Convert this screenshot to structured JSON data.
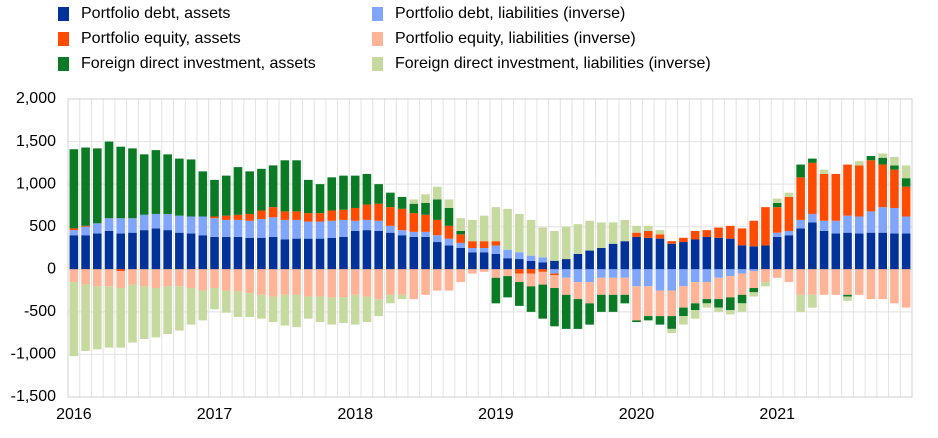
{
  "chart_data": {
    "type": "stacked_bar",
    "categories": [
      "2016",
      null,
      null,
      null,
      null,
      null,
      null,
      null,
      null,
      null,
      null,
      null,
      "2017",
      null,
      null,
      null,
      null,
      null,
      null,
      null,
      null,
      null,
      null,
      null,
      "2018",
      null,
      null,
      null,
      null,
      null,
      null,
      null,
      null,
      null,
      null,
      null,
      "2019",
      null,
      null,
      null,
      null,
      null,
      null,
      null,
      null,
      null,
      null,
      null,
      "2020",
      null,
      null,
      null,
      null,
      null,
      null,
      null,
      null,
      null,
      null,
      null,
      "2021",
      null,
      null,
      null,
      null,
      null,
      null,
      null,
      null,
      null,
      null,
      null
    ],
    "series": [
      {
        "name": "Portfolio debt, assets",
        "color": "#003299",
        "values": [
          400,
          400,
          420,
          450,
          420,
          430,
          460,
          480,
          460,
          430,
          420,
          400,
          380,
          380,
          380,
          370,
          370,
          380,
          350,
          360,
          360,
          360,
          370,
          380,
          450,
          460,
          450,
          430,
          400,
          380,
          380,
          320,
          280,
          250,
          200,
          200,
          180,
          130,
          120,
          100,
          80,
          100,
          120,
          180,
          220,
          250,
          300,
          330,
          380,
          370,
          360,
          300,
          320,
          350,
          380,
          370,
          360,
          280,
          270,
          280,
          380,
          400,
          480,
          550,
          450,
          420,
          430,
          420,
          430,
          430,
          420,
          420
        ]
      },
      {
        "name": "Portfolio debt, liabilities (inverse)",
        "color": "#7fa6fb",
        "values": [
          60,
          100,
          120,
          150,
          180,
          170,
          180,
          170,
          190,
          200,
          200,
          220,
          220,
          200,
          200,
          200,
          220,
          230,
          230,
          220,
          200,
          200,
          200,
          200,
          120,
          120,
          120,
          80,
          60,
          60,
          60,
          80,
          80,
          60,
          50,
          50,
          100,
          100,
          80,
          60,
          60,
          -50,
          -100,
          -150,
          -150,
          -100,
          -100,
          -100,
          -200,
          -200,
          -250,
          -250,
          -200,
          -150,
          -150,
          -100,
          -80,
          -50,
          -20,
          0,
          50,
          50,
          100,
          100,
          120,
          150,
          200,
          200,
          250,
          300,
          300,
          200
        ]
      },
      {
        "name": "Portfolio equity, assets",
        "color": "#ff4b00",
        "values": [
          20,
          10,
          0,
          0,
          -20,
          0,
          0,
          0,
          0,
          0,
          0,
          0,
          20,
          50,
          60,
          80,
          100,
          120,
          100,
          100,
          100,
          100,
          120,
          120,
          150,
          180,
          200,
          220,
          250,
          220,
          200,
          180,
          150,
          100,
          80,
          80,
          50,
          0,
          -50,
          -50,
          -30,
          -20,
          0,
          0,
          0,
          0,
          0,
          0,
          50,
          80,
          50,
          30,
          50,
          100,
          80,
          120,
          150,
          200,
          300,
          450,
          300,
          400,
          500,
          600,
          550,
          550,
          600,
          600,
          600,
          500,
          450,
          350
        ]
      },
      {
        "name": "Portfolio equity, liabilities (inverse)",
        "color": "#ffb497",
        "values": [
          -150,
          -180,
          -200,
          -200,
          -200,
          -180,
          -200,
          -220,
          -200,
          -200,
          -220,
          -250,
          -220,
          -250,
          -260,
          -280,
          -300,
          -320,
          -300,
          -300,
          -320,
          -320,
          -330,
          -330,
          -300,
          -320,
          -350,
          -300,
          -300,
          -350,
          -300,
          -250,
          -250,
          -150,
          -50,
          -30,
          -100,
          -80,
          -100,
          -150,
          -150,
          -150,
          -200,
          -200,
          -250,
          -200,
          -200,
          -200,
          -400,
          -350,
          -300,
          -300,
          -250,
          -250,
          -200,
          -250,
          -250,
          -250,
          -200,
          -150,
          -100,
          -150,
          -300,
          -300,
          -300,
          -300,
          -300,
          -300,
          -350,
          -350,
          -400,
          -450
        ]
      },
      {
        "name": "Foreign direct investment, assets",
        "color": "#0b7a25",
        "values": [
          930,
          920,
          880,
          900,
          840,
          820,
          710,
          750,
          700,
          670,
          670,
          530,
          430,
          470,
          560,
          500,
          490,
          490,
          600,
          600,
          390,
          340,
          390,
          400,
          380,
          360,
          230,
          170,
          140,
          110,
          140,
          240,
          210,
          40,
          0,
          0,
          -300,
          -250,
          -280,
          -300,
          -400,
          -450,
          -400,
          -350,
          -250,
          -200,
          -200,
          -100,
          -20,
          -50,
          -100,
          -150,
          -100,
          -80,
          -50,
          -100,
          -150,
          -100,
          -50,
          0,
          50,
          0,
          150,
          50,
          0,
          0,
          -20,
          0,
          50,
          80,
          50,
          100
        ]
      },
      {
        "name": "Foreign direct investment, liabilities (inverse)",
        "color": "#c6daa0",
        "values": [
          -870,
          -780,
          -740,
          -720,
          -700,
          -680,
          -620,
          -580,
          -560,
          -520,
          -430,
          -350,
          -250,
          -260,
          -300,
          -280,
          -280,
          -300,
          -360,
          -380,
          -260,
          -300,
          -320,
          -300,
          -350,
          -300,
          -200,
          -100,
          -50,
          50,
          100,
          150,
          100,
          150,
          250,
          300,
          400,
          480,
          450,
          420,
          350,
          350,
          380,
          350,
          350,
          300,
          250,
          250,
          80,
          60,
          50,
          -50,
          -100,
          -100,
          -50,
          -50,
          -50,
          -100,
          -50,
          -50,
          50,
          50,
          -200,
          -150,
          50,
          0,
          -50,
          50,
          0,
          50,
          100,
          150
        ]
      }
    ],
    "ylim": [
      -1500,
      2000
    ],
    "yticks": [
      {
        "value": -1500,
        "label": "-1,500"
      },
      {
        "value": -1000,
        "label": "-1,000"
      },
      -500,
      0,
      500,
      {
        "value": 1000,
        "label": "1,000"
      },
      {
        "value": 1500,
        "label": "1,500"
      },
      {
        "value": 2000,
        "label": "2,000"
      }
    ],
    "grid": true
  }
}
